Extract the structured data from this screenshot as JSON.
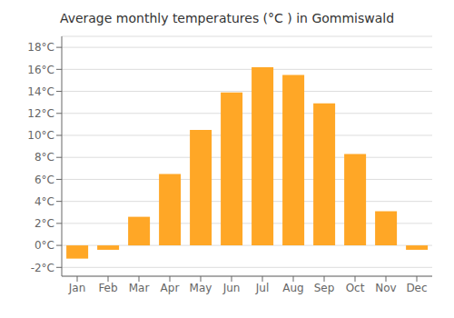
{
  "chart_data": {
    "type": "bar",
    "title": "Average monthly temperatures (°C ) in Gommiswald",
    "categories": [
      "Jan",
      "Feb",
      "Mar",
      "Apr",
      "May",
      "Jun",
      "Jul",
      "Aug",
      "Sep",
      "Oct",
      "Nov",
      "Dec"
    ],
    "values": [
      -1.2,
      -0.4,
      2.6,
      6.5,
      10.5,
      13.9,
      16.2,
      15.5,
      12.9,
      8.3,
      3.1,
      -0.4
    ],
    "color": "#FFA726",
    "ylim": [
      -2.8,
      19.0
    ],
    "yticks": [
      {
        "value": -2,
        "label": "-2°C"
      },
      {
        "value": 0,
        "label": "0°C"
      },
      {
        "value": 2,
        "label": "2°C"
      },
      {
        "value": 4,
        "label": "4°C"
      },
      {
        "value": 6,
        "label": "6°C"
      },
      {
        "value": 8,
        "label": "8°C"
      },
      {
        "value": 10,
        "label": "10°C"
      },
      {
        "value": 12,
        "label": "12°C"
      },
      {
        "value": 14,
        "label": "14°C"
      },
      {
        "value": 16,
        "label": "16°C"
      },
      {
        "value": 18,
        "label": "18°C"
      }
    ],
    "grid": true
  }
}
